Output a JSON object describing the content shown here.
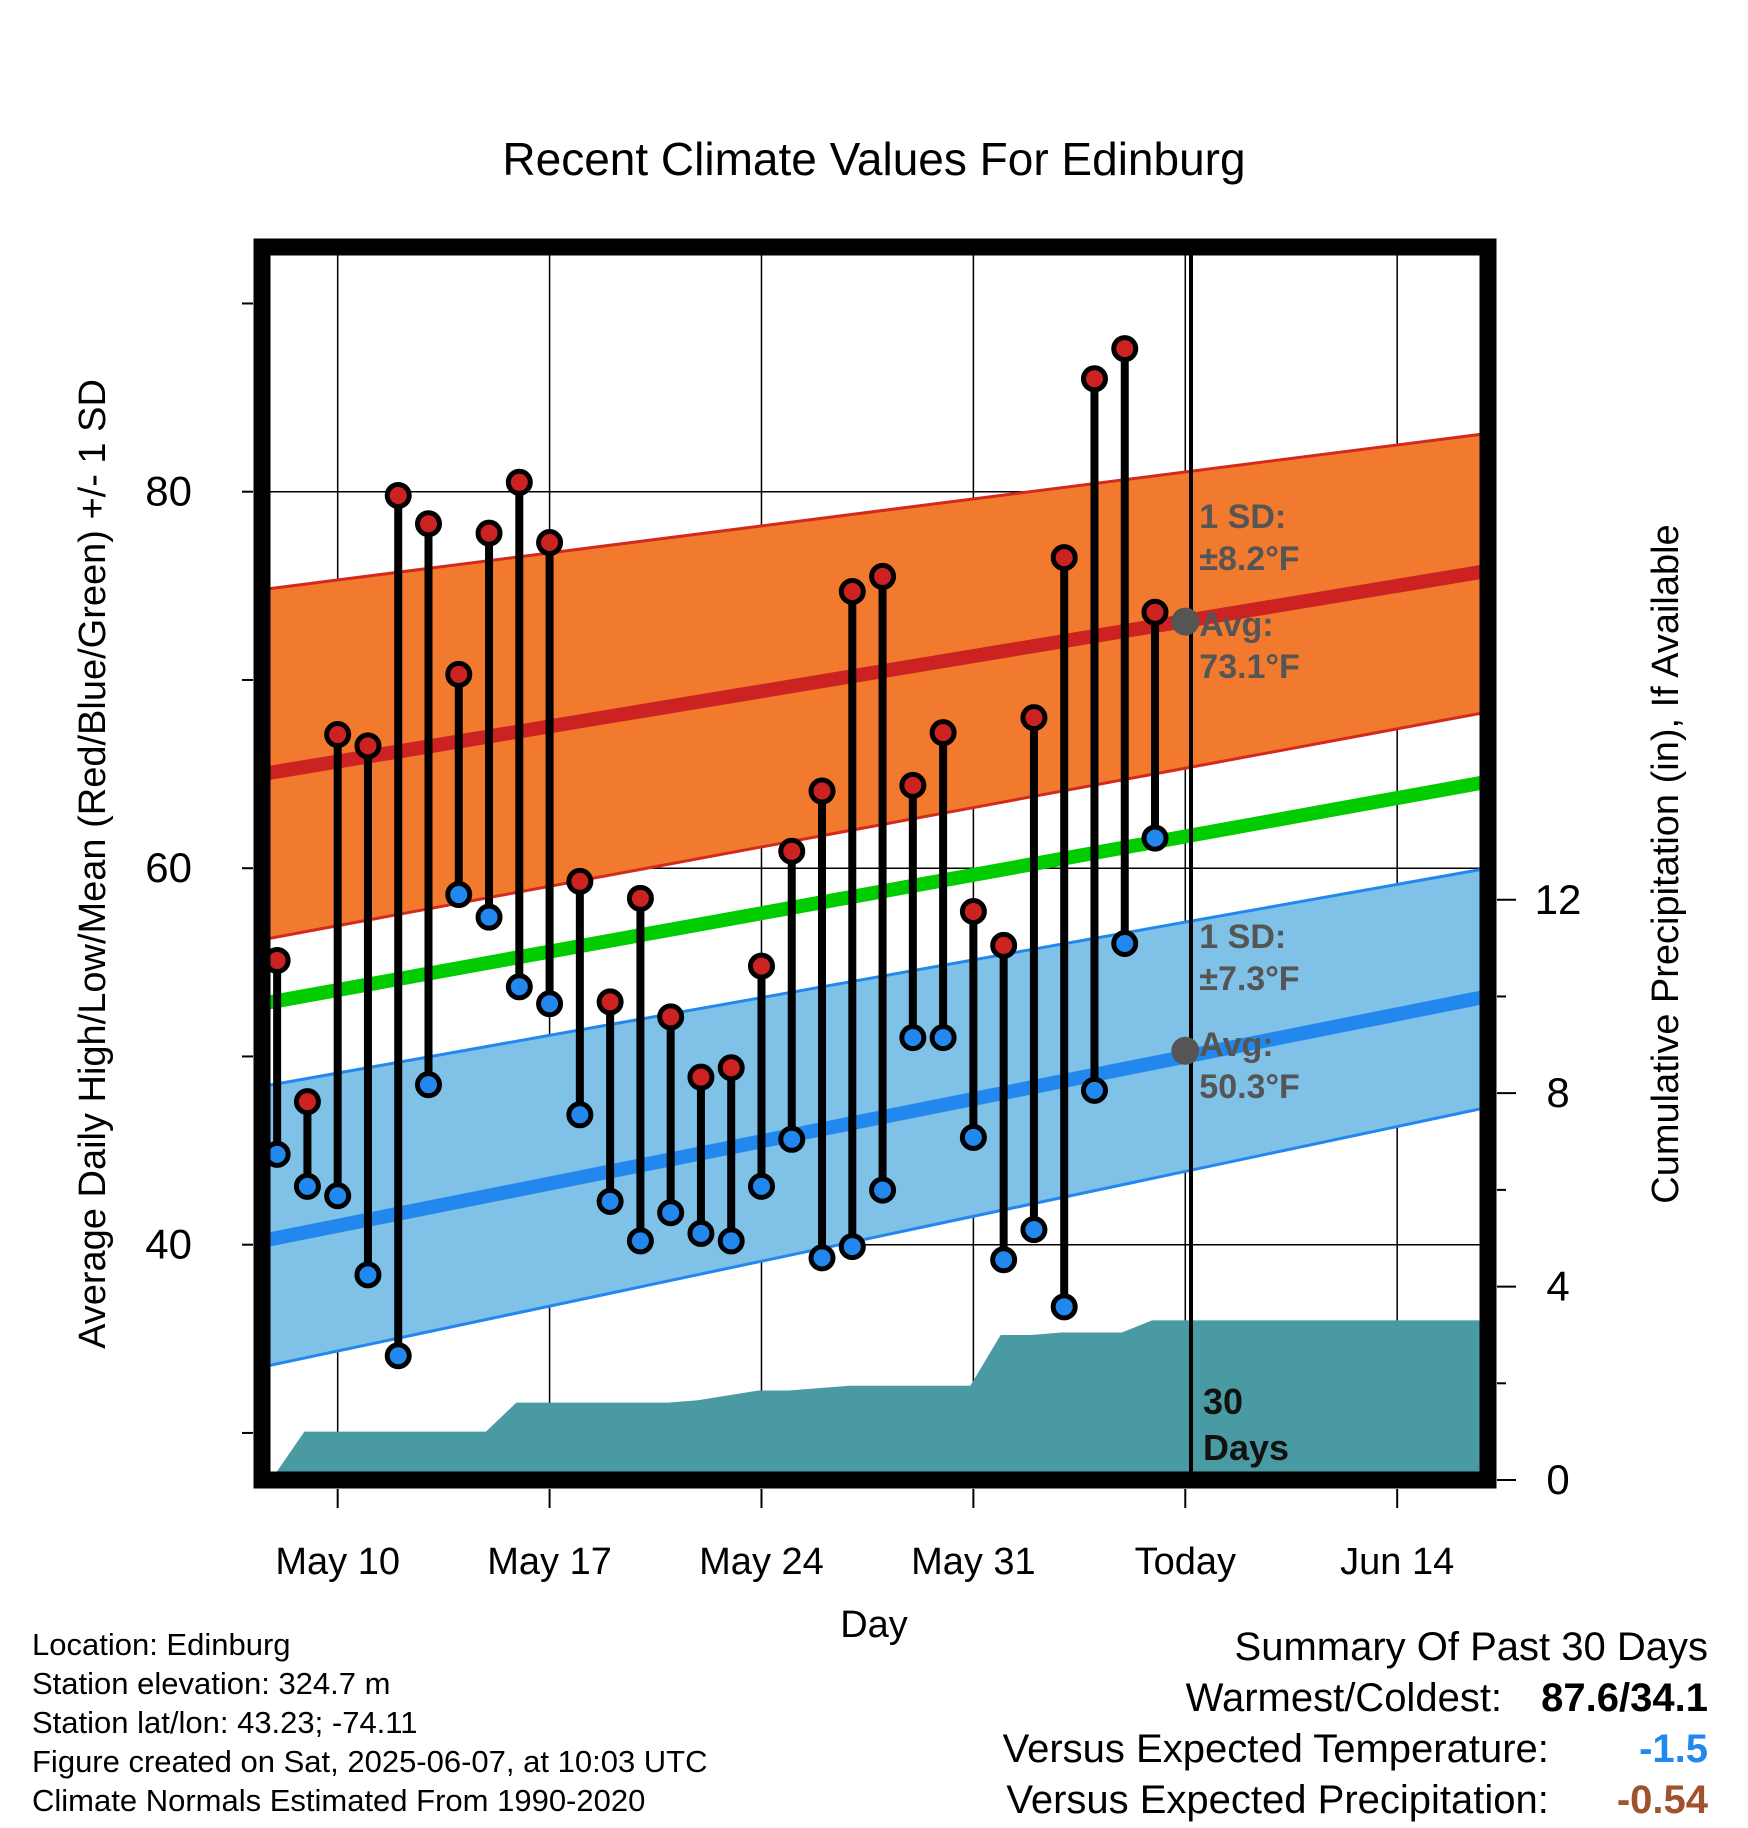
{
  "chart_data": {
    "type": "line",
    "title": "Recent Climate Values For Edinburg",
    "xlabel": "Day",
    "ylabel": "Average Daily High/Low/Mean (Red/Blue/Green) +/- 1 SD",
    "y2label": "Cumulative Precipitation (in), If Available",
    "ylim": [
      27.5,
      93
    ],
    "y2lim": [
      0,
      25.5
    ],
    "y_ticks": [
      "40",
      "60",
      "80"
    ],
    "y2_ticks": [
      "0",
      "4",
      "8",
      "12"
    ],
    "x_ticks": [
      "May 10",
      "May 17",
      "May 24",
      "May 31",
      "Today",
      "Jun 14"
    ],
    "grid": true,
    "today_label_days": "30",
    "today_label_unit": "Days",
    "days": [
      "May 8",
      "May 9",
      "May 10",
      "May 11",
      "May 12",
      "May 13",
      "May 14",
      "May 15",
      "May 16",
      "May 17",
      "May 18",
      "May 19",
      "May 20",
      "May 21",
      "May 22",
      "May 23",
      "May 24",
      "May 25",
      "May 26",
      "May 27",
      "May 28",
      "May 29",
      "May 30",
      "May 31",
      "Jun 1",
      "Jun 2",
      "Jun 3",
      "Jun 4",
      "Jun 5",
      "Jun 6"
    ],
    "highs": [
      55.1,
      47.6,
      67.1,
      66.5,
      79.8,
      78.3,
      70.3,
      77.8,
      80.5,
      77.3,
      59.3,
      52.9,
      58.4,
      52.1,
      48.9,
      49.4,
      54.8,
      60.9,
      64.1,
      74.7,
      75.5,
      64.4,
      67.2,
      57.7,
      55.9,
      68.0,
      76.5,
      86.0,
      87.6,
      73.6
    ],
    "lows": [
      44.8,
      43.1,
      42.6,
      38.4,
      34.1,
      48.5,
      58.6,
      57.4,
      53.7,
      52.8,
      46.9,
      42.3,
      40.2,
      41.7,
      40.6,
      40.2,
      43.1,
      45.6,
      39.3,
      39.9,
      42.9,
      51.0,
      51.0,
      45.7,
      39.2,
      40.8,
      36.7,
      48.2,
      56.0,
      61.6
    ],
    "series": [
      {
        "name": "High",
        "color": "#cc2222",
        "values": [
          65.0,
          75.8
        ]
      },
      {
        "name": "Mean",
        "color": "#00cc00",
        "values": [
          52.8,
          64.6
        ]
      },
      {
        "name": "Low",
        "color": "#2288ee",
        "values": [
          40.2,
          53.2
        ]
      }
    ],
    "band_x": [
      "May 7.5",
      "Jun 17"
    ],
    "high_band": {
      "lower": [
        56.2,
        68.3
      ],
      "upper": [
        74.8,
        83.1
      ],
      "color": "#f27a2e"
    },
    "low_band": {
      "lower": [
        33.5,
        47.3
      ],
      "upper": [
        48.4,
        60.0
      ],
      "color": "#80c1e8"
    },
    "high_annotation": {
      "sd_label": "1 SD:",
      "sd_value": "±8.2°F",
      "avg_label": "Avg:",
      "avg_value": "73.1°F",
      "avg": 73.1
    },
    "low_annotation": {
      "sd_label": "1 SD:",
      "sd_value": "±7.3°F",
      "avg_label": "Avg:",
      "avg_value": "50.3°F",
      "avg": 50.3
    },
    "precip": {
      "color": "#4a9aa3",
      "x": [
        "May 7.8",
        "May 8.9",
        "May 14.9",
        "May 15.9",
        "May 20.9",
        "May 21.9",
        "May 22.9",
        "May 23.9",
        "May 24.9",
        "May 25.9",
        "May 26.9",
        "May 27.9",
        "May 28.9",
        "May 29.9",
        "May 30.9",
        "May 31.9",
        "Jun 1.9",
        "Jun 2.9",
        "Jun 3.9",
        "Jun 4.9",
        "Jun 5.9",
        "Jun 17"
      ],
      "values": [
        0,
        1.0,
        1.0,
        1.6,
        1.6,
        1.65,
        1.75,
        1.85,
        1.85,
        1.9,
        1.95,
        1.95,
        1.95,
        1.95,
        1.95,
        3.0,
        3.0,
        3.05,
        3.05,
        3.05,
        3.3,
        3.3
      ]
    }
  },
  "footer": {
    "location": "Location: Edinburg",
    "elevation": "Station elevation: 324.7 m",
    "latlon": "Station lat/lon: 43.23; -74.11",
    "created": "Figure created on Sat, 2025-06-07, at 10:03 UTC",
    "normals": "Climate Normals Estimated From 1990-2020"
  },
  "summary": {
    "heading": "Summary Of Past 30 Days",
    "warm_cold_label": "Warmest/Coldest:",
    "warm_cold_value": "87.6/34.1",
    "temp_label": "Versus Expected Temperature:",
    "temp_value": "-1.5",
    "temp_color": "#2288ee",
    "precip_label": "Versus Expected Precipitation:",
    "precip_value": "-0.54",
    "precip_color": "#a0522d"
  }
}
